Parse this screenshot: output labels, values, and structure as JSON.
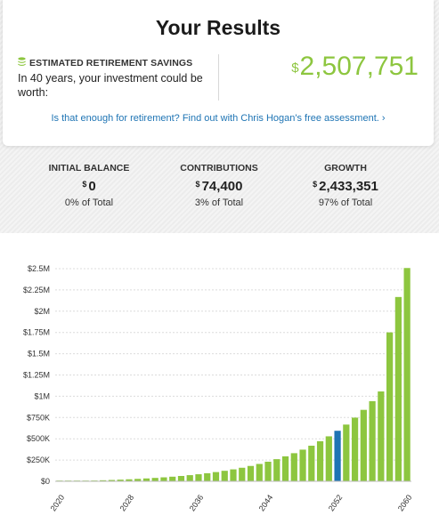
{
  "header": {
    "title": "Your Results"
  },
  "estimate": {
    "icon": "stack-icon",
    "label": "ESTIMATED RETIREMENT SAVINGS",
    "description": "In 40 years, your investment could be worth:",
    "currency": "$",
    "amount": "2,507,751"
  },
  "link_text": "Is that enough for retirement? Find out with Chris Hogan's free assessment. ›",
  "stats": [
    {
      "label": "INITIAL BALANCE",
      "currency": "$",
      "value": "0",
      "pct": "0% of Total"
    },
    {
      "label": "CONTRIBUTIONS",
      "currency": "$",
      "value": "74,400",
      "pct": "3% of Total"
    },
    {
      "label": "GROWTH",
      "currency": "$",
      "value": "2,433,351",
      "pct": "97% of Total"
    }
  ],
  "colors": {
    "accent": "#8dc63f",
    "highlight": "#1e74b4",
    "link": "#1e74b4"
  },
  "chart_data": {
    "type": "bar",
    "x": [
      2020,
      2021,
      2022,
      2023,
      2024,
      2025,
      2026,
      2027,
      2028,
      2029,
      2030,
      2031,
      2032,
      2033,
      2034,
      2035,
      2036,
      2037,
      2038,
      2039,
      2040,
      2041,
      2042,
      2043,
      2044,
      2045,
      2046,
      2047,
      2048,
      2049,
      2050,
      2051,
      2052,
      2053,
      2054,
      2055,
      2056,
      2057,
      2058,
      2059,
      2060
    ],
    "values": [
      0,
      1900,
      4000,
      6400,
      9100,
      12100,
      15500,
      19300,
      23600,
      28400,
      33800,
      39800,
      46600,
      54200,
      62800,
      72300,
      83000,
      95000,
      108500,
      123600,
      140400,
      159300,
      180500,
      204100,
      230600,
      260300,
      293400,
      330600,
      372200,
      418700,
      470700,
      528900,
      594000,
      667000,
      748600,
      840100,
      942400,
      1056800,
      1751000,
      2167000,
      2507751
    ],
    "highlight_year": 2052,
    "x_ticks": [
      "2020",
      "2028",
      "2036",
      "2044",
      "2052",
      "2060"
    ],
    "y_ticks": [
      "$0",
      "$250K",
      "$500K",
      "$750K",
      "$1M",
      "$1.25M",
      "$1.5M",
      "$1.75M",
      "$2M",
      "$2.25M",
      "$2.5M"
    ],
    "ylim": [
      0,
      2500000
    ],
    "grid": true
  }
}
